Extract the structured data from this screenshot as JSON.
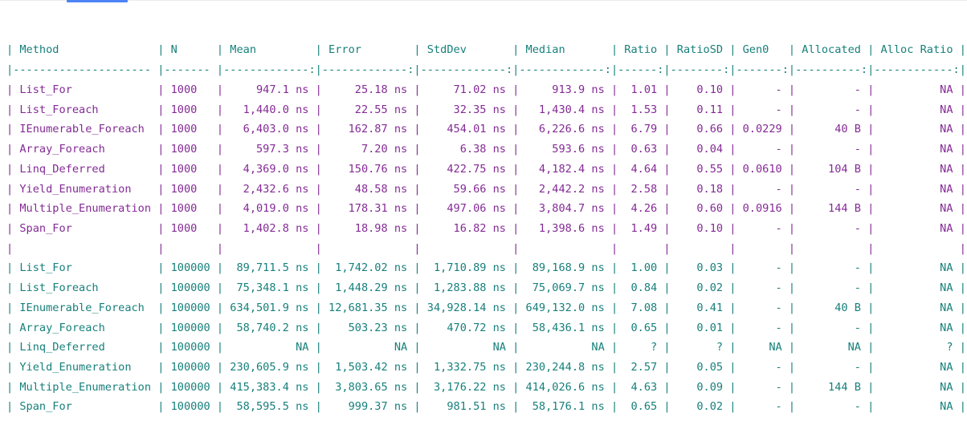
{
  "page": {
    "kind": "benchmarkdotnet-markdown-results",
    "background": "#ffffff",
    "top_hairline_color": "#ebebeb",
    "tab_indicator_color": "#4e83f6"
  },
  "colors": {
    "header": "#17807b",
    "separator": "#17807b",
    "group1": "#842b95",
    "group2": "#17807b",
    "blank_row": "#842b95"
  },
  "table": {
    "columns": [
      {
        "label": "Method",
        "align": "left",
        "width": 22
      },
      {
        "label": "N",
        "align": "left",
        "width": 8
      },
      {
        "label": "Mean",
        "align": "right",
        "width": 14
      },
      {
        "label": "Error",
        "align": "right",
        "width": 14
      },
      {
        "label": "StdDev",
        "align": "right",
        "width": 14
      },
      {
        "label": "Median",
        "align": "right",
        "width": 14
      },
      {
        "label": "Ratio",
        "align": "right",
        "width": 7
      },
      {
        "label": "RatioSD",
        "align": "right",
        "width": 9
      },
      {
        "label": "Gen0",
        "align": "right",
        "width": 8
      },
      {
        "label": "Allocated",
        "align": "right",
        "width": 11
      },
      {
        "label": "Alloc Ratio",
        "align": "right",
        "width": 13
      }
    ],
    "groups": [
      {
        "color_role": "group1",
        "rows": [
          [
            "List_For",
            "1000",
            "947.1 ns",
            "25.18 ns",
            "71.02 ns",
            "913.9 ns",
            "1.01",
            "0.10",
            "-",
            "-",
            "NA"
          ],
          [
            "List_Foreach",
            "1000",
            "1,440.0 ns",
            "22.55 ns",
            "32.35 ns",
            "1,430.4 ns",
            "1.53",
            "0.11",
            "-",
            "-",
            "NA"
          ],
          [
            "IEnumerable_Foreach",
            "1000",
            "6,403.0 ns",
            "162.87 ns",
            "454.01 ns",
            "6,226.6 ns",
            "6.79",
            "0.66",
            "0.0229",
            "40 B",
            "NA"
          ],
          [
            "Array_Foreach",
            "1000",
            "597.3 ns",
            "7.20 ns",
            "6.38 ns",
            "593.6 ns",
            "0.63",
            "0.04",
            "-",
            "-",
            "NA"
          ],
          [
            "Linq_Deferred",
            "1000",
            "4,369.0 ns",
            "150.76 ns",
            "422.75 ns",
            "4,182.4 ns",
            "4.64",
            "0.55",
            "0.0610",
            "104 B",
            "NA"
          ],
          [
            "Yield_Enumeration",
            "1000",
            "2,432.6 ns",
            "48.58 ns",
            "59.66 ns",
            "2,442.2 ns",
            "2.58",
            "0.18",
            "-",
            "-",
            "NA"
          ],
          [
            "Multiple_Enumeration",
            "1000",
            "4,019.0 ns",
            "178.31 ns",
            "497.06 ns",
            "3,804.7 ns",
            "4.26",
            "0.60",
            "0.0916",
            "144 B",
            "NA"
          ],
          [
            "Span_For",
            "1000",
            "1,402.8 ns",
            "18.98 ns",
            "16.82 ns",
            "1,398.6 ns",
            "1.49",
            "0.10",
            "-",
            "-",
            "NA"
          ]
        ]
      },
      {
        "color_role": "group2",
        "rows": [
          [
            "List_For",
            "100000",
            "89,711.5 ns",
            "1,742.02 ns",
            "1,710.89 ns",
            "89,168.9 ns",
            "1.00",
            "0.03",
            "-",
            "-",
            "NA"
          ],
          [
            "List_Foreach",
            "100000",
            "75,348.1 ns",
            "1,448.29 ns",
            "1,283.88 ns",
            "75,069.7 ns",
            "0.84",
            "0.02",
            "-",
            "-",
            "NA"
          ],
          [
            "IEnumerable_Foreach",
            "100000",
            "634,501.9 ns",
            "12,681.35 ns",
            "34,928.14 ns",
            "649,132.0 ns",
            "7.08",
            "0.41",
            "-",
            "40 B",
            "NA"
          ],
          [
            "Array_Foreach",
            "100000",
            "58,740.2 ns",
            "503.23 ns",
            "470.72 ns",
            "58,436.1 ns",
            "0.65",
            "0.01",
            "-",
            "-",
            "NA"
          ],
          [
            "Linq_Deferred",
            "100000",
            "NA",
            "NA",
            "NA",
            "NA",
            "?",
            "?",
            "NA",
            "NA",
            "?"
          ],
          [
            "Yield_Enumeration",
            "100000",
            "230,605.9 ns",
            "1,503.42 ns",
            "1,332.75 ns",
            "230,244.8 ns",
            "2.57",
            "0.05",
            "-",
            "-",
            "NA"
          ],
          [
            "Multiple_Enumeration",
            "100000",
            "415,383.4 ns",
            "3,803.65 ns",
            "3,176.22 ns",
            "414,026.6 ns",
            "4.63",
            "0.09",
            "-",
            "144 B",
            "NA"
          ],
          [
            "Span_For",
            "100000",
            "58,595.5 ns",
            "999.37 ns",
            "981.51 ns",
            "58,176.1 ns",
            "0.65",
            "0.02",
            "-",
            "-",
            "NA"
          ]
        ]
      }
    ]
  }
}
